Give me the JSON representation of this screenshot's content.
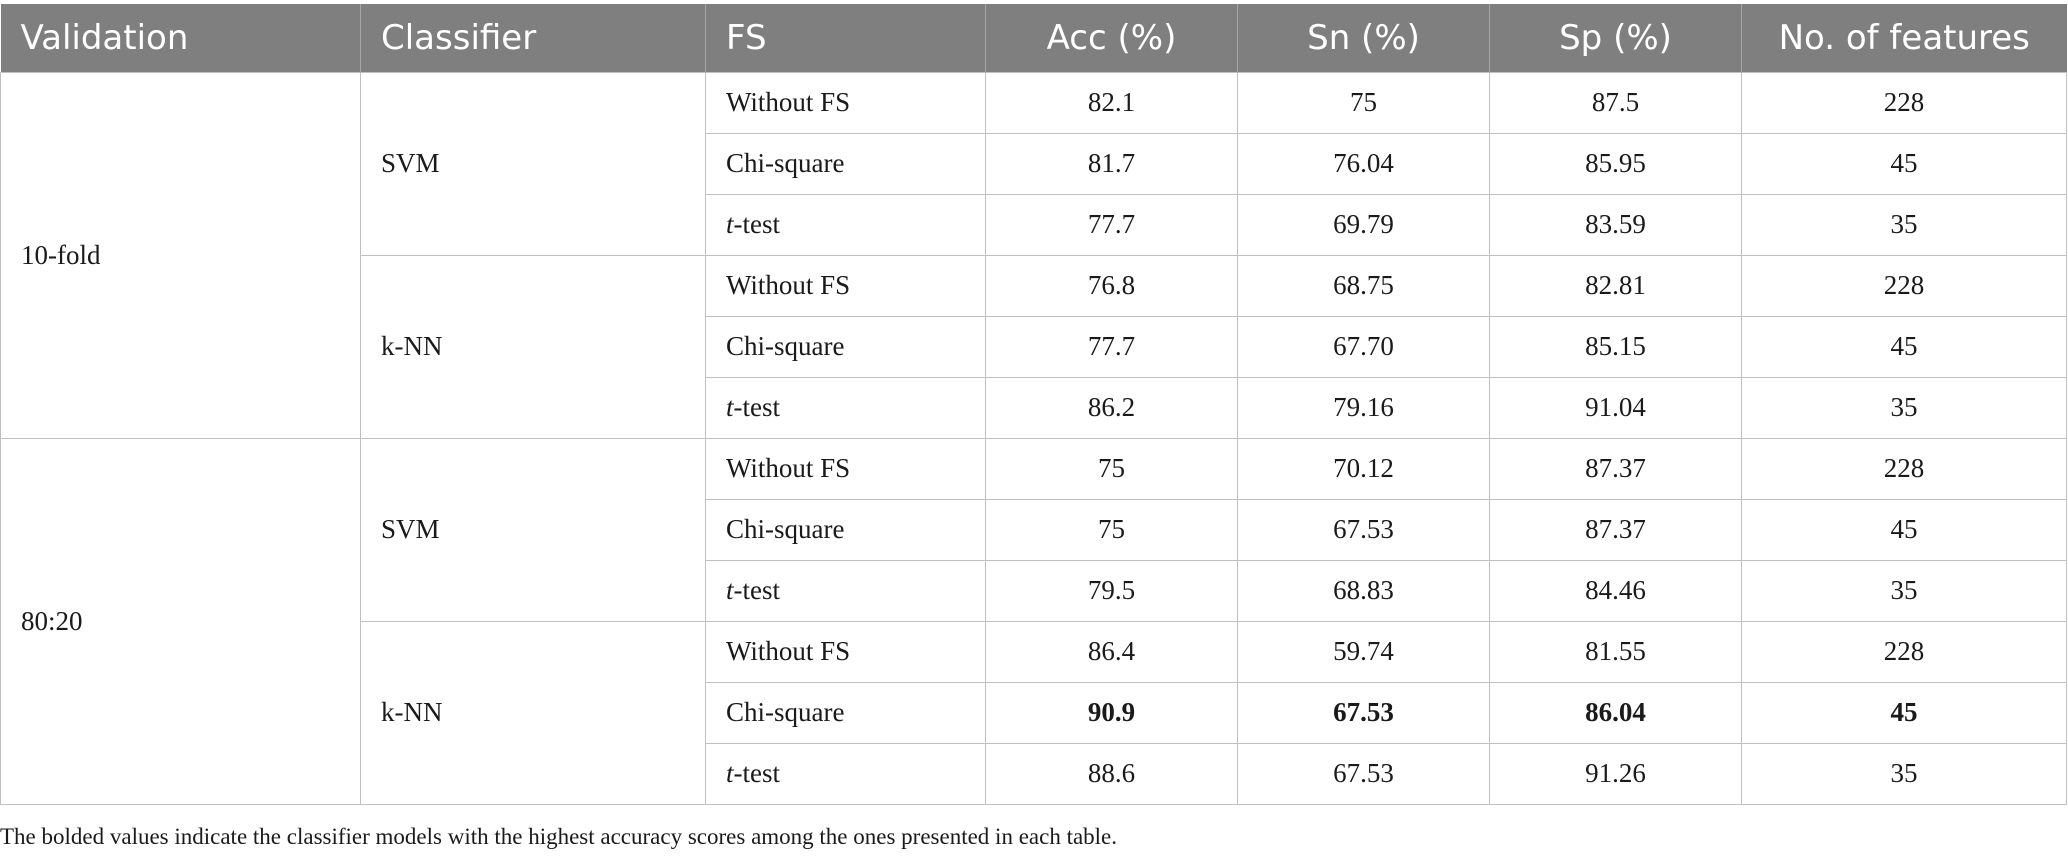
{
  "headers": {
    "validation": "Validation",
    "classifier": "Classifier",
    "fs": "FS",
    "acc": "Acc (%)",
    "sn": "Sn (%)",
    "sp": "Sp (%)",
    "features": "No. of features"
  },
  "groups": [
    {
      "validation": "10-fold",
      "classifiers": [
        {
          "name": "SVM",
          "rows": [
            {
              "fs": "Without FS",
              "fs_italic": "",
              "acc": "82.1",
              "sn": "75",
              "sp": "87.5",
              "features": "228"
            },
            {
              "fs": "Chi-square",
              "fs_italic": "",
              "acc": "81.7",
              "sn": "76.04",
              "sp": "85.95",
              "features": "45"
            },
            {
              "fs": "-test",
              "fs_italic": "t",
              "acc": "77.7",
              "sn": "69.79",
              "sp": "83.59",
              "features": "35"
            }
          ]
        },
        {
          "name": "k-NN",
          "rows": [
            {
              "fs": "Without FS",
              "fs_italic": "",
              "acc": "76.8",
              "sn": "68.75",
              "sp": "82.81",
              "features": "228"
            },
            {
              "fs": "Chi-square",
              "fs_italic": "",
              "acc": "77.7",
              "sn": "67.70",
              "sp": "85.15",
              "features": "45"
            },
            {
              "fs": "-test",
              "fs_italic": "t",
              "acc": "86.2",
              "sn": "79.16",
              "sp": "91.04",
              "features": "35"
            }
          ]
        }
      ]
    },
    {
      "validation": "80:20",
      "classifiers": [
        {
          "name": "SVM",
          "rows": [
            {
              "fs": "Without FS",
              "fs_italic": "",
              "acc": "75",
              "sn": "70.12",
              "sp": "87.37",
              "features": "228"
            },
            {
              "fs": "Chi-square",
              "fs_italic": "",
              "acc": "75",
              "sn": "67.53",
              "sp": "87.37",
              "features": "45"
            },
            {
              "fs": "-test",
              "fs_italic": "t",
              "acc": "79.5",
              "sn": "68.83",
              "sp": "84.46",
              "features": "35"
            }
          ]
        },
        {
          "name": "k-NN",
          "rows": [
            {
              "fs": "Without FS",
              "fs_italic": "",
              "acc": "86.4",
              "sn": "59.74",
              "sp": "81.55",
              "features": "228"
            },
            {
              "fs": "Chi-square",
              "fs_italic": "",
              "acc": "90.9",
              "sn": "67.53",
              "sp": "86.04",
              "features": "45",
              "bold": true
            },
            {
              "fs": "-test",
              "fs_italic": "t",
              "acc": "88.6",
              "sn": "67.53",
              "sp": "91.26",
              "features": "35"
            }
          ]
        }
      ]
    }
  ],
  "footnote": "The bolded values indicate the classifier models with the highest accuracy scores among the ones presented in each table."
}
